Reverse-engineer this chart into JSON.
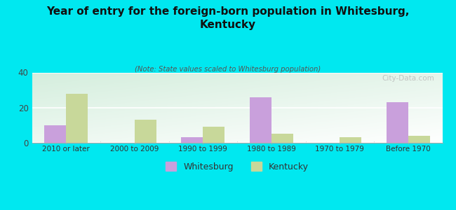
{
  "title": "Year of entry for the foreign-born population in Whitesburg,\nKentucky",
  "subtitle": "(Note: State values scaled to Whitesburg population)",
  "categories": [
    "2010 or later",
    "2000 to 2009",
    "1990 to 1999",
    "1980 to 1989",
    "1970 to 1979",
    "Before 1970"
  ],
  "whitesburg": [
    10,
    0,
    3,
    26,
    0,
    23
  ],
  "kentucky": [
    28,
    13,
    9,
    5,
    3,
    4
  ],
  "whitesburg_color": "#c9a0dc",
  "kentucky_color": "#c8d89a",
  "background_color": "#00e8f0",
  "ylim": [
    0,
    40
  ],
  "yticks": [
    0,
    20,
    40
  ],
  "bar_width": 0.32,
  "legend_labels": [
    "Whitesburg",
    "Kentucky"
  ],
  "watermark": "City-Data.com"
}
